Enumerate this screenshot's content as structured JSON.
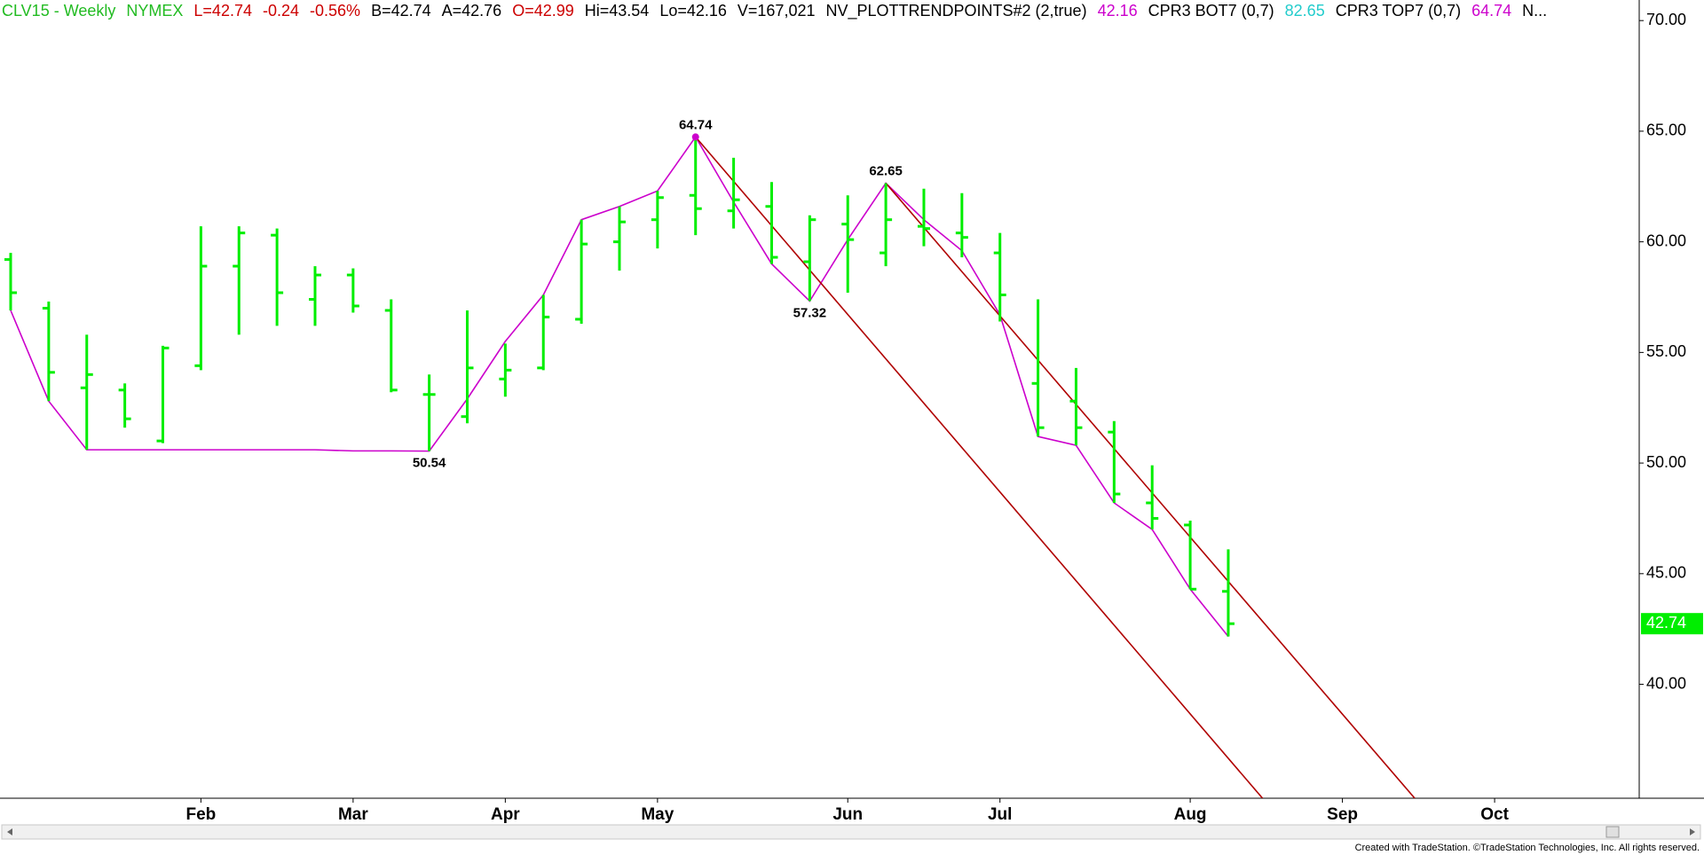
{
  "header": [
    {
      "text": "CLV15 - Weekly",
      "color": "#22bb22"
    },
    {
      "text": "NYMEX",
      "color": "#22bb22"
    },
    {
      "text": "L=42.74",
      "color": "#cc0000"
    },
    {
      "text": "-0.24",
      "color": "#cc0000"
    },
    {
      "text": "-0.56%",
      "color": "#cc0000"
    },
    {
      "text": "B=42.74",
      "color": "#000000"
    },
    {
      "text": "A=42.76",
      "color": "#000000"
    },
    {
      "text": "O=42.99",
      "color": "#cc0000"
    },
    {
      "text": "Hi=43.54",
      "color": "#000000"
    },
    {
      "text": "Lo=42.16",
      "color": "#000000"
    },
    {
      "text": "V=167,021",
      "color": "#000000"
    },
    {
      "text": "NV_PLOTTRENDPOINTS#2 (2,true)",
      "color": "#000000"
    },
    {
      "text": "42.16",
      "color": "#cc00cc"
    },
    {
      "text": "CPR3 BOT7 (0,7)",
      "color": "#000000"
    },
    {
      "text": "82.65",
      "color": "#22cccc"
    },
    {
      "text": "CPR3 TOP7 (0,7)",
      "color": "#000000"
    },
    {
      "text": "64.74",
      "color": "#cc00cc"
    },
    {
      "text": "N...",
      "color": "#000000"
    }
  ],
  "footer": "Created with TradeStation. ©TradeStation Technologies, Inc. All rights reserved.",
  "chart_data": {
    "type": "ohlc",
    "color": "#00ee00",
    "x": [
      0,
      1,
      2,
      3,
      4,
      5,
      6,
      7,
      8,
      9,
      10,
      11,
      12,
      13,
      14,
      15,
      16,
      17,
      18,
      19,
      20,
      21,
      22,
      23,
      24,
      25,
      26,
      27,
      28,
      29,
      30,
      31,
      32
    ],
    "open": [
      59.2,
      57.0,
      53.4,
      53.3,
      51.0,
      54.4,
      58.9,
      60.3,
      57.4,
      58.5,
      56.9,
      53.1,
      52.1,
      53.8,
      54.3,
      56.5,
      60.0,
      61.0,
      62.1,
      61.4,
      61.6,
      59.1,
      60.8,
      59.5,
      60.7,
      60.4,
      59.5,
      53.6,
      52.8,
      51.4,
      48.2,
      47.2,
      44.2
    ],
    "high": [
      59.5,
      57.3,
      55.8,
      53.6,
      55.3,
      60.7,
      60.7,
      60.6,
      58.9,
      58.8,
      57.4,
      54.0,
      56.9,
      55.4,
      57.6,
      61.0,
      61.6,
      62.3,
      64.74,
      63.8,
      62.7,
      61.2,
      62.1,
      62.65,
      62.4,
      62.2,
      60.4,
      57.4,
      54.3,
      51.9,
      49.9,
      47.4,
      46.1
    ],
    "low": [
      56.9,
      52.8,
      50.6,
      51.6,
      50.9,
      54.2,
      55.8,
      56.2,
      56.2,
      56.8,
      53.2,
      50.54,
      51.8,
      53.0,
      54.2,
      56.3,
      58.7,
      59.7,
      60.3,
      60.6,
      59.0,
      57.32,
      57.7,
      58.9,
      59.8,
      59.3,
      56.4,
      51.2,
      50.8,
      48.2,
      47.0,
      44.3,
      42.16
    ],
    "close": [
      57.7,
      54.1,
      54.0,
      52.0,
      55.2,
      58.9,
      60.4,
      57.7,
      58.5,
      57.1,
      53.3,
      53.1,
      54.3,
      54.2,
      56.6,
      59.9,
      60.9,
      62.0,
      61.5,
      61.9,
      59.3,
      61.0,
      60.1,
      61.0,
      60.6,
      60.2,
      57.6,
      51.6,
      51.6,
      48.6,
      47.5,
      44.3,
      42.74
    ],
    "overlays": [
      {
        "color": "#cc00cc",
        "x": [
          0,
          1,
          2,
          3,
          4,
          5,
          6,
          7,
          8,
          9,
          10,
          11,
          12,
          13,
          14,
          15,
          16,
          17,
          18,
          19,
          20,
          21,
          22,
          23,
          24,
          25,
          26,
          27,
          28,
          29,
          30,
          31,
          32
        ],
        "values": [
          56.9,
          52.8,
          50.6,
          50.6,
          50.6,
          50.6,
          50.6,
          50.6,
          50.6,
          50.55,
          50.55,
          50.54,
          52.9,
          55.5,
          57.6,
          61.0,
          61.6,
          62.3,
          64.74,
          61.8,
          59.0,
          57.32,
          60.1,
          62.65,
          61.0,
          59.6,
          56.7,
          51.2,
          50.8,
          48.2,
          47.0,
          44.3,
          42.16
        ]
      },
      {
        "color": "#b00000",
        "x": [
          18,
          32.9
        ],
        "values": [
          64.74,
          34.85
        ]
      },
      {
        "color": "#b00000",
        "x": [
          23,
          36.9
        ],
        "values": [
          62.65,
          34.85
        ]
      }
    ],
    "pivot": {
      "x": 18,
      "value": 64.74,
      "color": "#cc00cc"
    },
    "annotations": [
      {
        "x": 18,
        "value": 64.74,
        "position": "above"
      },
      {
        "x": 21,
        "value": 57.32,
        "position": "below"
      },
      {
        "x": 23,
        "value": 62.65,
        "position": "above"
      },
      {
        "x": 11,
        "value": 50.54,
        "position": "below"
      }
    ],
    "last_price_color": "#00ee00",
    "xlim": [
      -0.14,
      42.8
    ],
    "ylim": [
      34.85,
      70.93
    ],
    "xticks": [
      {
        "value": 5,
        "label": "Feb"
      },
      {
        "value": 9,
        "label": "Mar"
      },
      {
        "value": 13,
        "label": "Apr"
      },
      {
        "value": 17,
        "label": "May"
      },
      {
        "value": 22,
        "label": "Jun"
      },
      {
        "value": 26,
        "label": "Jul"
      },
      {
        "value": 31,
        "label": "Aug"
      },
      {
        "value": 35,
        "label": "Sep"
      },
      {
        "value": 39,
        "label": "Oct"
      }
    ],
    "yticks": [
      {
        "value": 40,
        "label": "40.00"
      },
      {
        "value": 45,
        "label": "45.00"
      },
      {
        "value": 50,
        "label": "50.00"
      },
      {
        "value": 55,
        "label": "55.00"
      },
      {
        "value": 60,
        "label": "60.00"
      },
      {
        "value": 65,
        "label": "65.00"
      },
      {
        "value": 70,
        "label": "70.00"
      }
    ]
  }
}
